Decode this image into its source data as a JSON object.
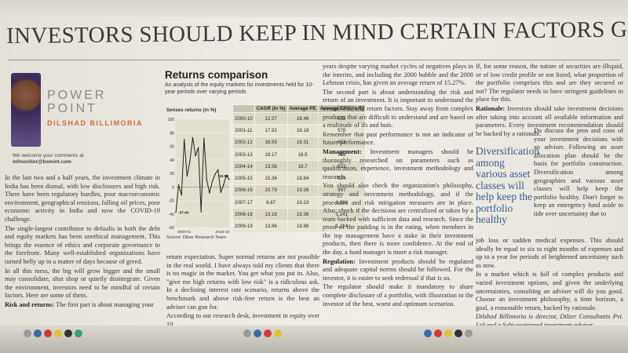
{
  "headline": "INVESTORS SHOULD KEEP IN MIND CERTAIN FACTORS GIVEN THE UNCERTAINTIES",
  "column": {
    "title": "POWER POINT",
    "title_l1": "POWER",
    "title_l2": "POINT",
    "author": "DILSHAD BILLIMORIA"
  },
  "contact": {
    "line1": "We welcome your comments at",
    "email": "mfmonitor@bsmint.com"
  },
  "box": {
    "title": "Returns comparison",
    "subtitle": "An analysis of the equity markets for investments held for 10-year periods over varying periods",
    "chart_title": "Sensex returns (in %)",
    "source": "Source: Dilzer Research Team"
  },
  "chart_data": {
    "type": "line",
    "title": "Sensex returns (in %)",
    "ylabel": "",
    "ylim": [
      -60,
      100
    ],
    "yticks": [
      100,
      80,
      60,
      40,
      20,
      0,
      -20,
      -40,
      -60
    ],
    "xticks": [
      "2000-01",
      "2018-19"
    ],
    "annotations": [
      {
        "label": "-37.64"
      },
      {
        "label": "10.98"
      }
    ],
    "series": [
      {
        "values": [
          -37.64,
          3,
          -12,
          70,
          16,
          38,
          73,
          46,
          58,
          -37,
          72,
          10,
          -9,
          8,
          19,
          25,
          -8,
          3,
          17,
          10.98
        ]
      }
    ]
  },
  "table": {
    "headers": [
      "",
      "CAGR (in %)",
      "Average PE",
      "Average EPS (in ₹)"
    ],
    "rows": [
      [
        "2000-10",
        "12.57",
        "18.46",
        "502"
      ],
      [
        "2001-11",
        "17.92",
        "18.18",
        "570"
      ],
      [
        "2002-12",
        "16.93",
        "18.31",
        "653"
      ],
      [
        "2003-13",
        "19.17",
        "18.5",
        "739"
      ],
      [
        "2004-14",
        "13.58",
        "18.7",
        "833"
      ],
      [
        "2005-15",
        "15.36",
        "18.84",
        "924"
      ],
      [
        "2006-16",
        "10.79",
        "19.26",
        "997"
      ],
      [
        "2007-17",
        "6.67",
        "19.23",
        "1,080"
      ],
      [
        "2008-18",
        "13.18",
        "19.36",
        "1,141"
      ],
      [
        "2009-19",
        "13.86",
        "19.88",
        "1,214"
      ]
    ]
  },
  "col1": {
    "p1": "In the last two and a half years, the investment climate in India has been dismal, with low disclosures and high risk. There have been regulatory hurdles, poor macroeconomic environment, geographical tensions, falling oil prices, poor economic activity in India and now the COVID-19 challenge.",
    "p2": "The single-largest contributor to defaults in both the debt and equity markets has been unethical management. This brings the essence of ethics and corporate governance to the forefront. Many well-established organizations have turned belly up in a matter of days because of greed.",
    "p3": "In all this mess, the big will grow bigger and the small may consolidate, shut shop or quietly disintegrate. Given the environment, investors need to be mindful of certain factors. Here are some of them.",
    "p4_head": "Risk and returns:",
    "p4": "The first part is about managing your"
  },
  "col2": {
    "p1": "return expectation. Super normal returns are not possible in the real world. I have always told my clients that there is no magic in the market. You get what you put in. Also, \"give me high returns with low risk\" is a ridiculous ask. In a declining interest rate scenario, returns above the benchmark and above risk-free return is the best an adviser can gun for.",
    "p2": "According to our research desk, investment in equity over 10"
  },
  "col3": {
    "p1": "years despite varying market cycles of negatives plays in the interim, and including the 2000 bubble and the 2008 Lehman crisis, has given an average return of 15.27%.",
    "p2": "The second part is about understanding the risk and return of an investment. It is important to understand the overall risk and return factors. Stay away from complex products that are difficult to understand and are based on a multitude of ifs and buts.",
    "p3": "Remember that past performance is not an indicator of future performance.",
    "p4_head": "Management:",
    "p4": "Investment managers should be thoroughly researched on parameters such as qualification, experience, investment methodology and research.",
    "p5": "You should also check the organization's philosophy, strategy and investment methodology, and if the processes and risk mitigation measures are in place. Also, check if the decisions are centralized or taken by a team backed with sufficient data and research. Since the proof of the pudding is in the eating, when members in the top management have a stake in their investment products, then there is more confidence. At the end of the day, a fund manager is more a risk manager.",
    "p6_head": "Regulation:",
    "p6": "Investment products should be regulated and adequate capital norms should be followed. For the investor, it is easier to seek redressal if that is so.",
    "p7": "The regulator should make it mandatory to share complete disclosure of a portfolio, with illustration to the investor of the best, worst and optimum scenarios."
  },
  "col4": {
    "p1": "If, for some reason, the nature of securities are illiquid, or of low credit profile or not listed, what proportion of the portfolio comprises this and are they secured or not? The regulator needs to have stringent guidelines in place for this.",
    "p2_head": "Rationale:",
    "p2": "Investors should take investment decisions after taking into account all available information and parameters. Every investment recommendation should be backed by a rationale.",
    "p3": "Do discuss the pros and cons of your investment decisions with an adviser. Following an asset allocation plan should be the basis for portfolio construction. Diversification among geographies and various asset classes will help keep the portfolio healthy. Don't forget to keep an emergency fund aside to tide over uncertainty due to",
    "p4": "job loss or sudden medical expenses. This should ideally be equal to six to eight months of expenses and up to a year for periods of heightened uncertainty such as now.",
    "p5": "In a market which is full of complex products and varied investment options, and given the underlying uncertainties, consulting an adviser will do you good. Choose an investment philosophy, a time horizon, a goal, a reasonable return, backed by rationale.",
    "sig": "Dilshad Billimoria is director, Dilzer Consultants Pvt. Ltd and a Sebi-registered investment adviser"
  },
  "pull_quote": "Diversification among various asset classes will help keep the portfolio healthy"
}
